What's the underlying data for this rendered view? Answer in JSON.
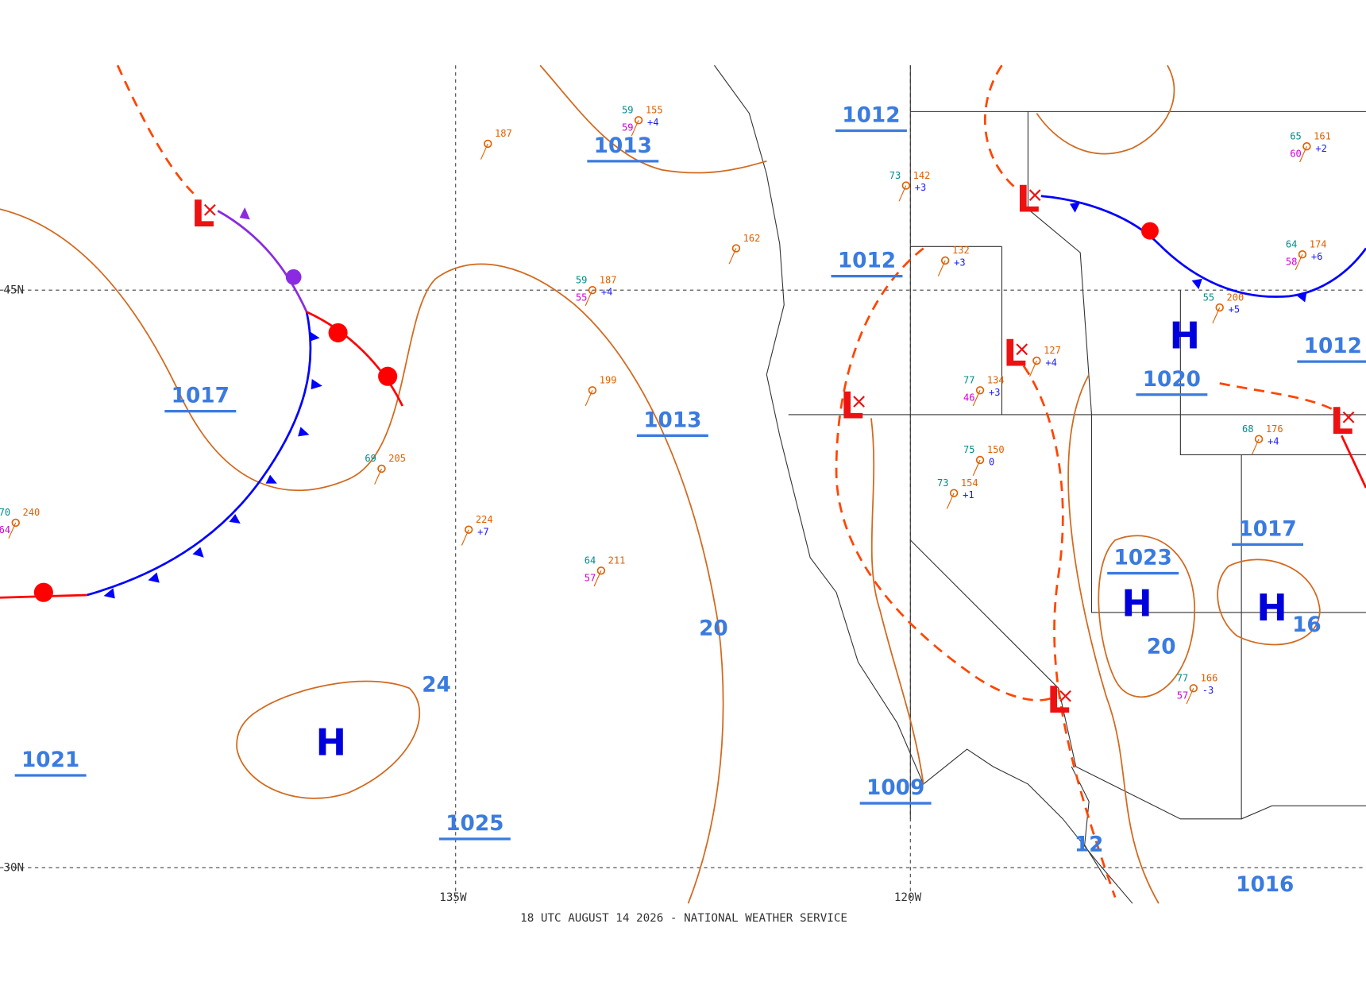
{
  "footer": "18 UTC AUGUST 14 2026 - NATIONAL WEATHER SERVICE",
  "latitude_labels": [
    "45N",
    "30N"
  ],
  "longitude_labels": [
    "135W",
    "120W"
  ],
  "isobar_labels": [
    "1013",
    "1013",
    "1012",
    "1012",
    "1017",
    "1021",
    "1025",
    "1009",
    "1020",
    "1023",
    "1017",
    "1012",
    "1016",
    "24",
    "20",
    "20",
    "12",
    "16"
  ],
  "pressure_centers": [
    "H",
    "H",
    "H",
    "H",
    "L",
    "L",
    "L",
    "L",
    "L",
    "L"
  ],
  "stations": [
    {
      "pressure": "187"
    },
    {
      "temperature": "69",
      "pressure": "205"
    },
    {
      "temperature": "70",
      "pressure": "240",
      "dewpoint": "64"
    },
    {
      "pressure": "224",
      "tendency": "+7"
    },
    {
      "temperature": "64",
      "pressure": "211",
      "dewpoint": "57"
    },
    {
      "pressure": "199"
    },
    {
      "temperature": "59",
      "pressure": "187",
      "dewpoint": "55",
      "tendency": "+4"
    },
    {
      "temperature": "59",
      "pressure": "155",
      "dewpoint": "59",
      "tendency": "+4"
    },
    {
      "pressure": "162"
    },
    {
      "pressure": "132",
      "tendency": "+3"
    },
    {
      "temperature": "77",
      "pressure": "134",
      "dewpoint": "46",
      "tendency": "+3"
    },
    {
      "temperature": "75",
      "pressure": "150",
      "tendency": "0"
    },
    {
      "temperature": "73",
      "pressure": "154",
      "tendency": "+1"
    },
    {
      "temperature": "55",
      "pressure": "200",
      "tendency": "+5"
    },
    {
      "temperature": "68",
      "pressure": "176",
      "tendency": "+4"
    },
    {
      "temperature": "64",
      "pressure": "174",
      "dewpoint": "58",
      "tendency": "+6"
    },
    {
      "temperature": "65",
      "pressure": "161",
      "dewpoint": "60",
      "tendency": "+2"
    },
    {
      "temperature": "77",
      "pressure": "166",
      "dewpoint": "57",
      "tendency": "-3"
    },
    {
      "pressure": "127",
      "tendency": "+4"
    },
    {
      "temperature": "73",
      "pressure": "142",
      "tendency": "+3"
    }
  ]
}
